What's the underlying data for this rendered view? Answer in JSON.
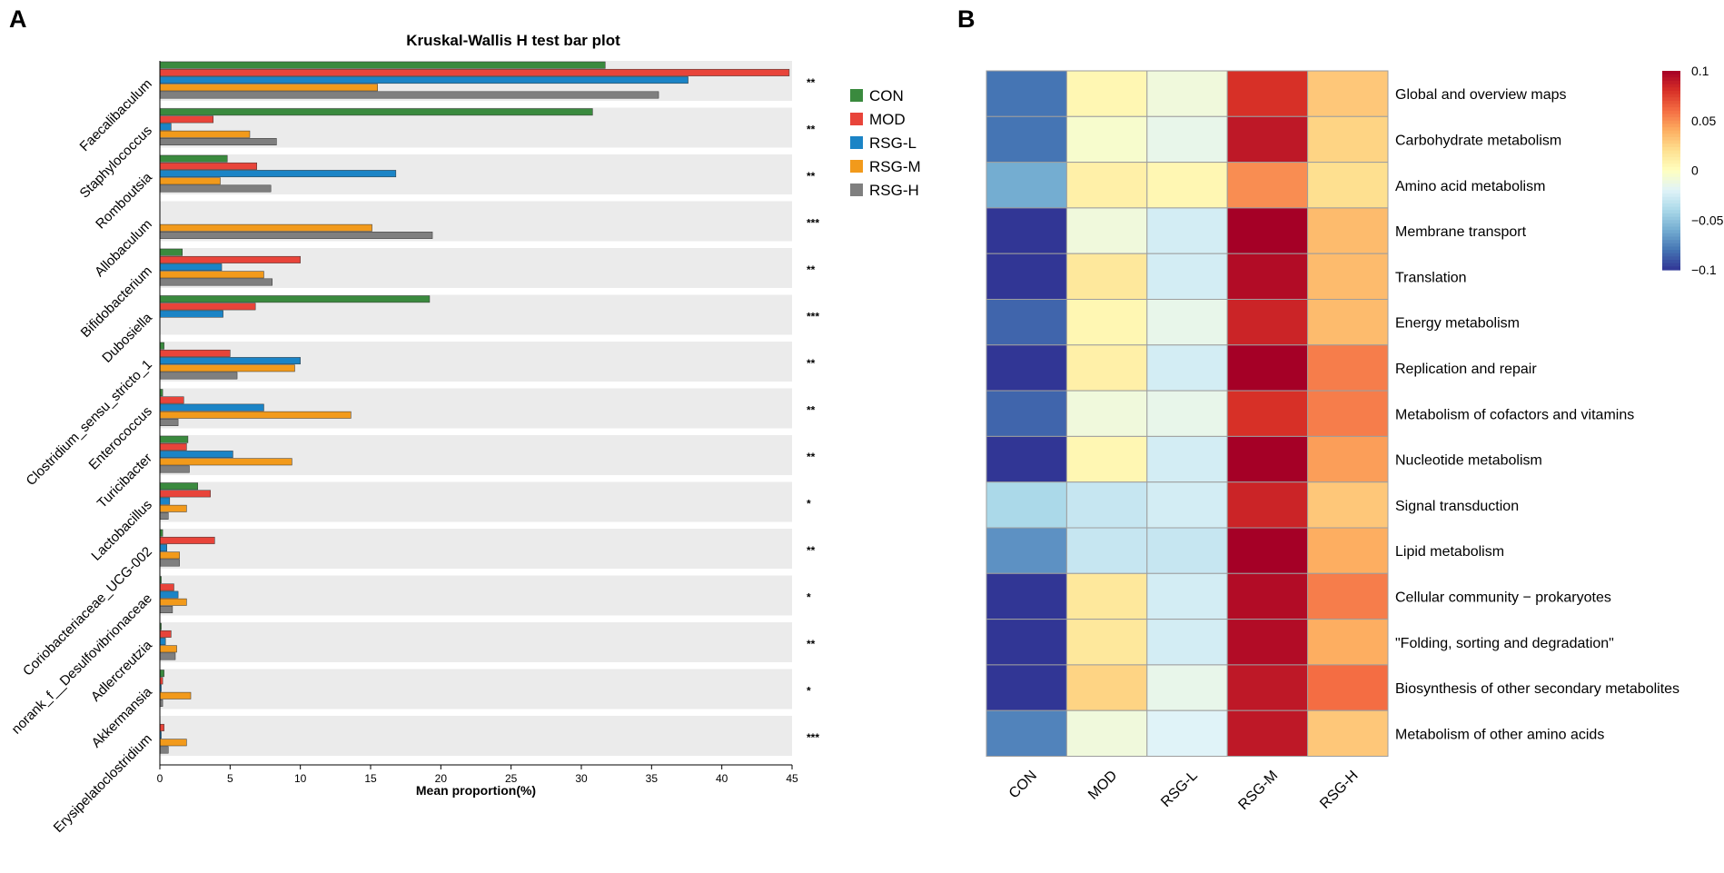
{
  "panels": {
    "a": {
      "letter": "A"
    },
    "b": {
      "letter": "B"
    }
  },
  "chart_data": [
    {
      "type": "bar",
      "orientation": "horizontal",
      "title": "Kruskal-Wallis H test bar plot",
      "xlabel": "Mean proportion(%)",
      "ylabel": "",
      "xlim": [
        0,
        45
      ],
      "xticks": [
        0,
        5,
        10,
        15,
        20,
        25,
        30,
        35,
        40,
        45
      ],
      "grid": false,
      "legend_position": "right",
      "categories": [
        "Faecalibaculum",
        "Staphylococcus",
        "Romboutsia",
        "Allobaculum",
        "Bifidobacterium",
        "Dubosiella",
        "Clostridium_sensu_stricto_1",
        "Enterococcus",
        "Turicibacter",
        "Lactobacillus",
        "Coriobacteriaceae_UCG-002",
        "norank_f__Desulfovibrionaceae",
        "Adlercreutzia",
        "Akkermansia",
        "Erysipelatoclostridium"
      ],
      "significance": [
        "**",
        "**",
        "**",
        "***",
        "**",
        "***",
        "**",
        "**",
        "**",
        "*",
        "**",
        "*",
        "**",
        "*",
        "***"
      ],
      "series": [
        {
          "name": "CON",
          "color": "#3a8a3e",
          "values": [
            31.7,
            30.8,
            4.8,
            0.0,
            1.6,
            19.2,
            0.3,
            0.2,
            2.0,
            2.7,
            0.2,
            0.1,
            0.1,
            0.3,
            0.0
          ]
        },
        {
          "name": "MOD",
          "color": "#e8443a",
          "values": [
            44.8,
            3.8,
            6.9,
            0.0,
            10.0,
            6.8,
            5.0,
            1.7,
            1.9,
            3.6,
            3.9,
            1.0,
            0.8,
            0.2,
            0.3
          ]
        },
        {
          "name": "RSG-L",
          "color": "#1b84c6",
          "values": [
            37.6,
            0.8,
            16.8,
            0.0,
            4.4,
            4.5,
            10.0,
            7.4,
            5.2,
            0.7,
            0.5,
            1.3,
            0.4,
            0.1,
            0.1
          ]
        },
        {
          "name": "RSG-M",
          "color": "#f29a1b",
          "values": [
            15.5,
            6.4,
            4.3,
            15.1,
            7.4,
            0.0,
            9.6,
            13.6,
            9.4,
            1.9,
            1.4,
            1.9,
            1.2,
            2.2,
            1.9
          ]
        },
        {
          "name": "RSG-H",
          "color": "#7f7f7f",
          "values": [
            35.5,
            8.3,
            7.9,
            19.4,
            8.0,
            0.0,
            5.5,
            1.3,
            2.1,
            0.6,
            1.4,
            0.9,
            1.1,
            0.2,
            0.6
          ]
        }
      ]
    },
    {
      "type": "heatmap",
      "columns": [
        "CON",
        "MOD",
        "RSG-L",
        "RSG-M",
        "RSG-H"
      ],
      "rows": [
        "Global and overview maps",
        "Carbohydrate metabolism",
        "Amino acid metabolism",
        "Membrane transport",
        "Translation",
        "Energy metabolism",
        "Replication and repair",
        "Metabolism of cofactors and vitamins",
        "Nucleotide metabolism",
        "Signal transduction",
        "Lipid metabolism",
        "Cellular community − prokaryotes",
        "\"Folding, sorting and degradation\"",
        "Biosynthesis of other secondary metabolites",
        "Metabolism of other amino acids"
      ],
      "values": [
        [
          -0.08,
          0.005,
          -0.01,
          0.08,
          0.03
        ],
        [
          -0.08,
          -0.005,
          -0.015,
          0.09,
          0.025
        ],
        [
          -0.06,
          0.01,
          0.005,
          0.05,
          0.02
        ],
        [
          -0.1,
          -0.01,
          -0.025,
          0.1,
          0.035
        ],
        [
          -0.1,
          0.015,
          -0.025,
          0.095,
          0.035
        ],
        [
          -0.085,
          0.005,
          -0.015,
          0.085,
          0.035
        ],
        [
          -0.1,
          0.01,
          -0.025,
          0.1,
          0.055
        ],
        [
          -0.085,
          -0.01,
          -0.015,
          0.08,
          0.055
        ],
        [
          -0.1,
          0.005,
          -0.025,
          0.1,
          0.045
        ],
        [
          -0.04,
          -0.03,
          -0.025,
          0.085,
          0.03
        ],
        [
          -0.07,
          -0.03,
          -0.03,
          0.1,
          0.04
        ],
        [
          -0.1,
          0.015,
          -0.025,
          0.095,
          0.055
        ],
        [
          -0.1,
          0.015,
          -0.025,
          0.095,
          0.04
        ],
        [
          -0.1,
          0.025,
          -0.015,
          0.09,
          0.06
        ],
        [
          -0.075,
          -0.01,
          -0.02,
          0.09,
          0.03
        ]
      ],
      "colorbar": {
        "min": -0.1,
        "max": 0.1,
        "ticks": [
          0.1,
          0.05,
          0,
          -0.05,
          -0.1
        ],
        "tick_labels": [
          "0.1",
          "0.05",
          "0",
          "−0.05",
          "−0.1"
        ],
        "colors": [
          "#313695",
          "#4575b4",
          "#74add1",
          "#abd9e9",
          "#e0f3f8",
          "#ffffbf",
          "#fee090",
          "#fdae61",
          "#f46d43",
          "#d73027",
          "#a50026"
        ]
      }
    }
  ]
}
